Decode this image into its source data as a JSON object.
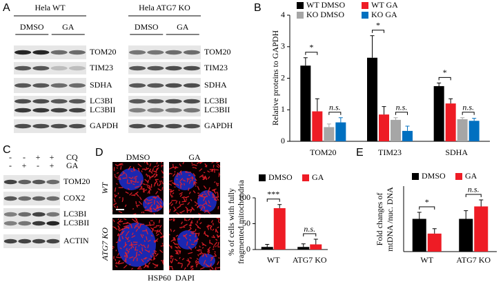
{
  "panel_labels": [
    "A",
    "B",
    "C",
    "D",
    "E"
  ],
  "blot_A": {
    "groups": [
      {
        "title": "Hela WT",
        "conditions": [
          "DMSO",
          "GA"
        ]
      },
      {
        "title": "Hela ATG7 KO",
        "conditions": [
          "DMSO",
          "GA"
        ]
      }
    ],
    "bands": [
      "TOM20",
      "TIM23",
      "SDHA",
      "LC3BI",
      "LC3BII",
      "GAPDH"
    ]
  },
  "blot_C": {
    "treatments": [
      {
        "name": "CQ",
        "signs": [
          "-",
          "-",
          "+",
          "+"
        ]
      },
      {
        "name": "GA",
        "signs": [
          "-",
          "+",
          "-",
          "+"
        ]
      }
    ],
    "bands": [
      "TOM20",
      "COX2",
      "LC3BI",
      "LC3BII",
      "ACTIN"
    ]
  },
  "micrographs": {
    "columns": [
      "DMSO",
      "GA"
    ],
    "rows": [
      "WT",
      "ATG7 KO"
    ],
    "stains": [
      {
        "name": "HSP60",
        "color": "#e8202a"
      },
      {
        "name": "DAPI",
        "color": "#1f2fd0"
      }
    ]
  },
  "chart_data": [
    {
      "type": "bar",
      "y_label": "Relative proteins to GAPDH",
      "categories": [
        "TOM20",
        "TIM23",
        "SDHA"
      ],
      "series": [
        {
          "name": "WT DMSO",
          "color": "#000000",
          "values": [
            2.4,
            2.65,
            1.75
          ],
          "errors": [
            0.25,
            0.7,
            0.1
          ]
        },
        {
          "name": "WT GA",
          "color": "#ee1c25",
          "values": [
            0.95,
            0.85,
            1.2
          ],
          "errors": [
            0.4,
            0.25,
            0.15
          ]
        },
        {
          "name": "KO DMSO",
          "color": "#a6a6a6",
          "values": [
            0.45,
            0.68,
            0.7
          ],
          "errors": [
            0.1,
            0.07,
            0.05
          ]
        },
        {
          "name": "KO GA",
          "color": "#0070c0",
          "values": [
            0.6,
            0.33,
            0.65
          ],
          "errors": [
            0.15,
            0.15,
            0.08
          ]
        }
      ],
      "ylim": [
        0,
        4
      ],
      "yticks": [
        0,
        1,
        2,
        3,
        4
      ],
      "annotations": [
        "*",
        "n.s.",
        "*",
        "n.s.",
        "*",
        "n.s."
      ]
    },
    {
      "type": "bar",
      "y_label": [
        "% of cells with fully",
        "fragmented mitochondria"
      ],
      "categories": [
        "WT",
        "ATG7 KO"
      ],
      "series": [
        {
          "name": "DMSO",
          "color": "#000000",
          "values": [
            5,
            5
          ],
          "errors": [
            5,
            6
          ]
        },
        {
          "name": "GA",
          "color": "#ee1c25",
          "values": [
            80,
            10
          ],
          "errors": [
            7,
            10
          ]
        }
      ],
      "ylim": [
        0,
        100
      ],
      "yticks": [
        0,
        50,
        100
      ],
      "annotations": [
        "***",
        "n.s."
      ]
    },
    {
      "type": "bar",
      "y_label": [
        "Fold changes of",
        "mtDNA /nuc. DNA"
      ],
      "categories": [
        "WT",
        "ATG7 KO"
      ],
      "series": [
        {
          "name": "DMSO",
          "color": "#000000",
          "values": [
            1.0,
            1.0
          ],
          "errors": [
            0.2,
            0.25
          ]
        },
        {
          "name": "GA",
          "color": "#ee1c25",
          "values": [
            0.55,
            1.38
          ],
          "errors": [
            0.15,
            0.2
          ]
        }
      ],
      "ylim": [
        0,
        2
      ],
      "annotations": [
        "*",
        "n.s."
      ]
    }
  ]
}
